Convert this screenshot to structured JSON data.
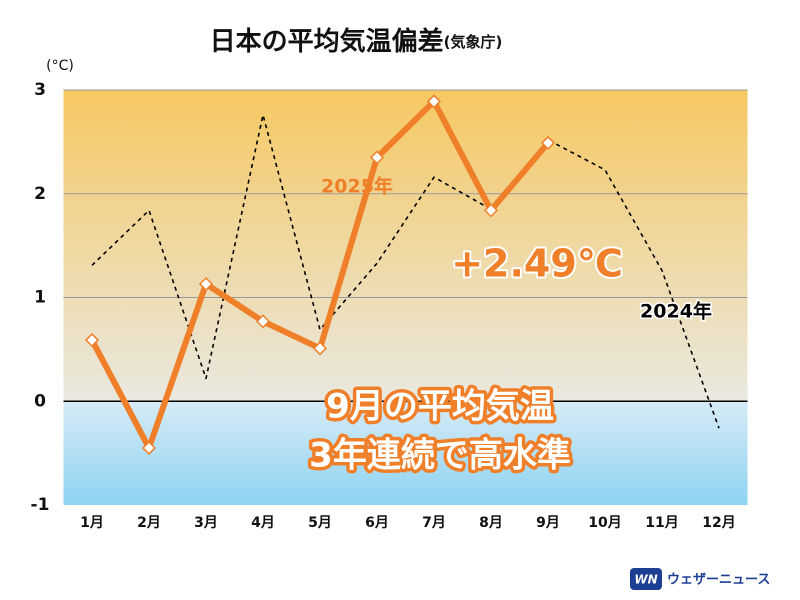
{
  "chart_data": {
    "type": "line",
    "title": "日本の平均気温偏差",
    "subtitle": "(気象庁)",
    "y_axis_label": "(°C)",
    "categories": [
      "1月",
      "2月",
      "3月",
      "4月",
      "5月",
      "6月",
      "7月",
      "8月",
      "9月",
      "10月",
      "11月",
      "12月"
    ],
    "series": [
      {
        "name": "2025年",
        "color": "#f07f2a",
        "linestyle": "solid",
        "markers": true,
        "values": [
          0.59,
          -0.45,
          1.13,
          0.77,
          0.51,
          2.35,
          2.89,
          1.84,
          2.49,
          null,
          null,
          null
        ]
      },
      {
        "name": "2024年",
        "color": "#000000",
        "linestyle": "dashed",
        "markers": false,
        "values": [
          1.31,
          1.84,
          0.22,
          2.76,
          0.69,
          1.33,
          2.16,
          1.85,
          2.52,
          2.23,
          1.26,
          -0.26
        ]
      }
    ],
    "annotations": [
      "+2.49℃",
      "9月の平均気温",
      "3年連続で高水準"
    ],
    "ylim": [
      -1,
      3
    ],
    "yticks": [
      -1,
      0,
      1,
      2,
      3
    ],
    "grid": true,
    "brand": {
      "icon": "WN",
      "name": "ウェザーニュース"
    }
  }
}
